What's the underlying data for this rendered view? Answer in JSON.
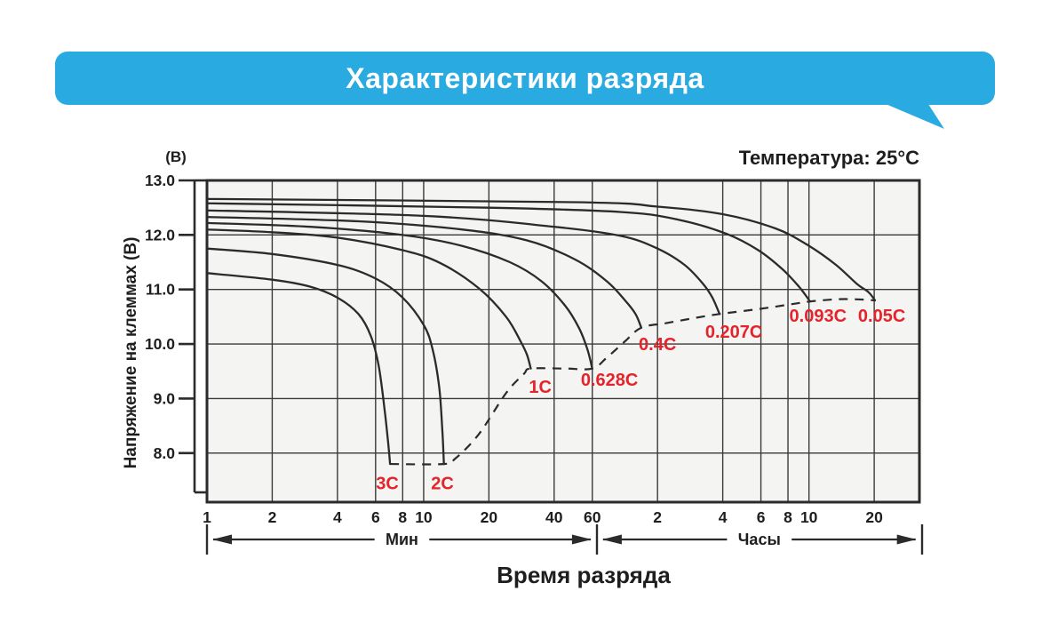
{
  "header": {
    "title": "Характеристики разряда"
  },
  "chart_data": {
    "type": "line",
    "title": "Характеристики разряда",
    "annotation": "Температура: 25°C",
    "xlabel": "Время разряда",
    "ylabel": "Напряжение на клеммах (В)",
    "y_unit_label": "(В)",
    "x_scale": "log",
    "x_unit": "minutes",
    "xlim_minutes": [
      1,
      1940
    ],
    "ylim": [
      7.1,
      13.0
    ],
    "grid": true,
    "legend_position": "inline-labels",
    "colors": {
      "banner_blue": "#29abe2",
      "curve": "#2b2b2b",
      "series_label_red": "#e4232b",
      "plot_bg": "#f4f4f2",
      "grid_line": "#3a3a3a"
    },
    "y_ticks": [
      {
        "label": "13.0",
        "v": 13.0
      },
      {
        "label": "12.0",
        "v": 12.0
      },
      {
        "label": "11.0",
        "v": 11.0
      },
      {
        "label": "10.0",
        "v": 10.0
      },
      {
        "label": "9.0",
        "v": 9.0
      },
      {
        "label": "8.0",
        "v": 8.0
      }
    ],
    "x_ticks": [
      {
        "label": "1",
        "t": 1
      },
      {
        "label": "2",
        "t": 2
      },
      {
        "label": "4",
        "t": 4
      },
      {
        "label": "6",
        "t": 6
      },
      {
        "label": "8",
        "t": 8
      },
      {
        "label": "10",
        "t": 10
      },
      {
        "label": "20",
        "t": 20
      },
      {
        "label": "40",
        "t": 40
      },
      {
        "label": "60",
        "t": 60
      },
      {
        "label": "2",
        "t": 120
      },
      {
        "label": "4",
        "t": 240
      },
      {
        "label": "6",
        "t": 360
      },
      {
        "label": "8",
        "t": 480
      },
      {
        "label": "10",
        "t": 600
      },
      {
        "label": "20",
        "t": 1200
      }
    ],
    "x_ranges": [
      {
        "label": "Мин",
        "from_t": 1,
        "to_t": 63
      },
      {
        "label": "Часы",
        "from_t": 63,
        "to_t": 1990
      }
    ],
    "series": [
      {
        "name": "3C",
        "label": "3C",
        "label_at": [
          6.8,
          7.45
        ],
        "points": [
          [
            1,
            11.3
          ],
          [
            2,
            11.18
          ],
          [
            3,
            11.05
          ],
          [
            4,
            10.85
          ],
          [
            5,
            10.55
          ],
          [
            5.7,
            10.15
          ],
          [
            6.2,
            9.6
          ],
          [
            6.6,
            8.8
          ],
          [
            6.85,
            8.2
          ],
          [
            7.0,
            7.8
          ]
        ]
      },
      {
        "name": "2C",
        "label": "2C",
        "label_at": [
          12.2,
          7.45
        ],
        "points": [
          [
            1,
            11.75
          ],
          [
            2,
            11.65
          ],
          [
            4,
            11.45
          ],
          [
            6,
            11.2
          ],
          [
            8,
            10.85
          ],
          [
            10,
            10.35
          ],
          [
            11,
            9.9
          ],
          [
            11.8,
            9.2
          ],
          [
            12.2,
            8.4
          ],
          [
            12.4,
            7.8
          ]
        ]
      },
      {
        "name": "1C",
        "label": "1C",
        "label_at": [
          34.5,
          9.22
        ],
        "points": [
          [
            1,
            12.1
          ],
          [
            2,
            12.05
          ],
          [
            4,
            11.95
          ],
          [
            8,
            11.72
          ],
          [
            12,
            11.48
          ],
          [
            18,
            11.02
          ],
          [
            24,
            10.5
          ],
          [
            28,
            10.05
          ],
          [
            30,
            9.8
          ],
          [
            31.2,
            9.55
          ]
        ]
      },
      {
        "name": "0.628C",
        "label": "0.628C",
        "label_at": [
          72,
          9.35
        ],
        "points": [
          [
            1,
            12.22
          ],
          [
            3,
            12.15
          ],
          [
            8,
            12.0
          ],
          [
            15,
            11.8
          ],
          [
            25,
            11.5
          ],
          [
            35,
            11.15
          ],
          [
            45,
            10.7
          ],
          [
            52,
            10.3
          ],
          [
            57,
            9.9
          ],
          [
            60,
            9.55
          ]
        ]
      },
      {
        "name": "0.4C",
        "label": "0.4C",
        "label_at": [
          120,
          10.0
        ],
        "points": [
          [
            1,
            12.33
          ],
          [
            5,
            12.25
          ],
          [
            15,
            12.1
          ],
          [
            30,
            11.9
          ],
          [
            50,
            11.55
          ],
          [
            70,
            11.15
          ],
          [
            85,
            10.8
          ],
          [
            95,
            10.55
          ],
          [
            101,
            10.3
          ]
        ]
      },
      {
        "name": "0.207C",
        "label": "0.207C",
        "label_at": [
          270,
          10.23
        ],
        "points": [
          [
            1,
            12.45
          ],
          [
            10,
            12.35
          ],
          [
            40,
            12.15
          ],
          [
            82,
            11.98
          ],
          [
            120,
            11.75
          ],
          [
            160,
            11.45
          ],
          [
            195,
            11.1
          ],
          [
            215,
            10.85
          ],
          [
            232,
            10.55
          ]
        ]
      },
      {
        "name": "0.093C",
        "label": "0.093C",
        "label_at": [
          660,
          10.52
        ],
        "points": [
          [
            1,
            12.58
          ],
          [
            20,
            12.5
          ],
          [
            82,
            12.42
          ],
          [
            150,
            12.28
          ],
          [
            250,
            12.02
          ],
          [
            350,
            11.72
          ],
          [
            450,
            11.38
          ],
          [
            540,
            11.05
          ],
          [
            607,
            10.78
          ]
        ]
      },
      {
        "name": "0.05C",
        "label": "0.05C",
        "label_at": [
          1300,
          10.52
        ],
        "points": [
          [
            1,
            12.66
          ],
          [
            50,
            12.6
          ],
          [
            120,
            12.52
          ],
          [
            240,
            12.38
          ],
          [
            420,
            12.12
          ],
          [
            600,
            11.8
          ],
          [
            800,
            11.45
          ],
          [
            1000,
            11.1
          ],
          [
            1130,
            10.95
          ],
          [
            1210,
            10.8
          ]
        ]
      }
    ],
    "cutoff_line": {
      "name": "cutoff-voltage-line",
      "style": "dashed",
      "points": [
        [
          7.0,
          7.8
        ],
        [
          12.4,
          7.8
        ],
        [
          14,
          7.9
        ],
        [
          18,
          8.35
        ],
        [
          24,
          9.1
        ],
        [
          29,
          9.45
        ],
        [
          31.2,
          9.55
        ],
        [
          45,
          9.55
        ],
        [
          60,
          9.55
        ],
        [
          70,
          9.75
        ],
        [
          85,
          10.05
        ],
        [
          101,
          10.3
        ],
        [
          130,
          10.38
        ],
        [
          180,
          10.48
        ],
        [
          232,
          10.55
        ],
        [
          350,
          10.64
        ],
        [
          480,
          10.72
        ],
        [
          607,
          10.78
        ],
        [
          800,
          10.82
        ],
        [
          1000,
          10.82
        ],
        [
          1210,
          10.8
        ]
      ]
    }
  }
}
